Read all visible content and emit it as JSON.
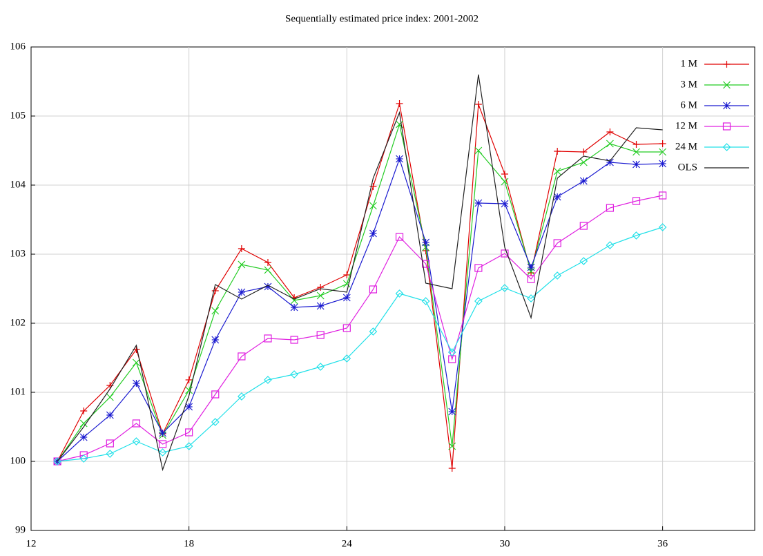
{
  "chart_data": {
    "type": "line",
    "title": "Sequentially estimated price index: 2001-2002",
    "x": [
      13,
      14,
      15,
      16,
      17,
      18,
      19,
      20,
      21,
      22,
      23,
      24,
      25,
      26,
      27,
      28,
      29,
      30,
      31,
      32,
      33,
      34,
      35,
      36
    ],
    "xlim": [
      12,
      39.5
    ],
    "xticks": [
      12,
      18,
      24,
      30,
      36
    ],
    "ylim": [
      99,
      106
    ],
    "yticks": [
      99,
      100,
      101,
      102,
      103,
      104,
      105,
      106
    ],
    "grid": true,
    "legend": "top-right",
    "series": [
      {
        "name": "1 M",
        "color": "#e00000",
        "marker": "plus",
        "values": [
          100,
          100.73,
          101.1,
          101.62,
          100.4,
          101.18,
          102.47,
          103.08,
          102.88,
          102.37,
          102.52,
          102.7,
          103.98,
          105.18,
          103.05,
          99.9,
          105.17,
          104.16,
          102.73,
          104.49,
          104.48,
          104.77,
          104.59,
          104.6
        ]
      },
      {
        "name": "3 M",
        "color": "#22cc22",
        "marker": "cross",
        "values": [
          100,
          100.55,
          100.93,
          101.43,
          100.38,
          101.03,
          102.18,
          102.85,
          102.77,
          102.33,
          102.4,
          102.57,
          103.7,
          104.88,
          103.1,
          100.22,
          104.5,
          104.05,
          102.75,
          104.2,
          104.33,
          104.6,
          104.48,
          104.48
        ]
      },
      {
        "name": "6 M",
        "color": "#1a1ad0",
        "marker": "star",
        "values": [
          100,
          100.35,
          100.67,
          101.13,
          100.41,
          100.79,
          101.76,
          102.45,
          102.53,
          102.23,
          102.25,
          102.37,
          103.3,
          104.38,
          103.17,
          100.72,
          103.74,
          103.73,
          102.81,
          103.83,
          104.06,
          104.33,
          104.3,
          104.31
        ]
      },
      {
        "name": "12 M",
        "color": "#e020e0",
        "marker": "square",
        "values": [
          100,
          100.09,
          100.26,
          100.55,
          100.25,
          100.42,
          100.97,
          101.52,
          101.78,
          101.76,
          101.83,
          101.93,
          102.49,
          103.25,
          102.86,
          101.48,
          102.8,
          103.01,
          102.64,
          103.16,
          103.41,
          103.67,
          103.77,
          103.85
        ]
      },
      {
        "name": "24 M",
        "color": "#20e0e8",
        "marker": "diamond",
        "values": [
          100,
          100.04,
          100.11,
          100.29,
          100.13,
          100.22,
          100.57,
          100.94,
          101.18,
          101.26,
          101.37,
          101.49,
          101.88,
          102.43,
          102.32,
          101.58,
          102.32,
          102.51,
          102.36,
          102.69,
          102.9,
          103.13,
          103.27,
          103.39
        ]
      },
      {
        "name": "OLS",
        "color": "#202020",
        "values": [
          100,
          100.5,
          101.05,
          101.68,
          99.88,
          100.95,
          102.56,
          102.35,
          102.55,
          102.35,
          102.5,
          102.45,
          104.1,
          105.05,
          102.58,
          102.5,
          105.6,
          103.1,
          102.08,
          104.1,
          104.42,
          104.35,
          104.83,
          104.8
        ]
      }
    ]
  }
}
